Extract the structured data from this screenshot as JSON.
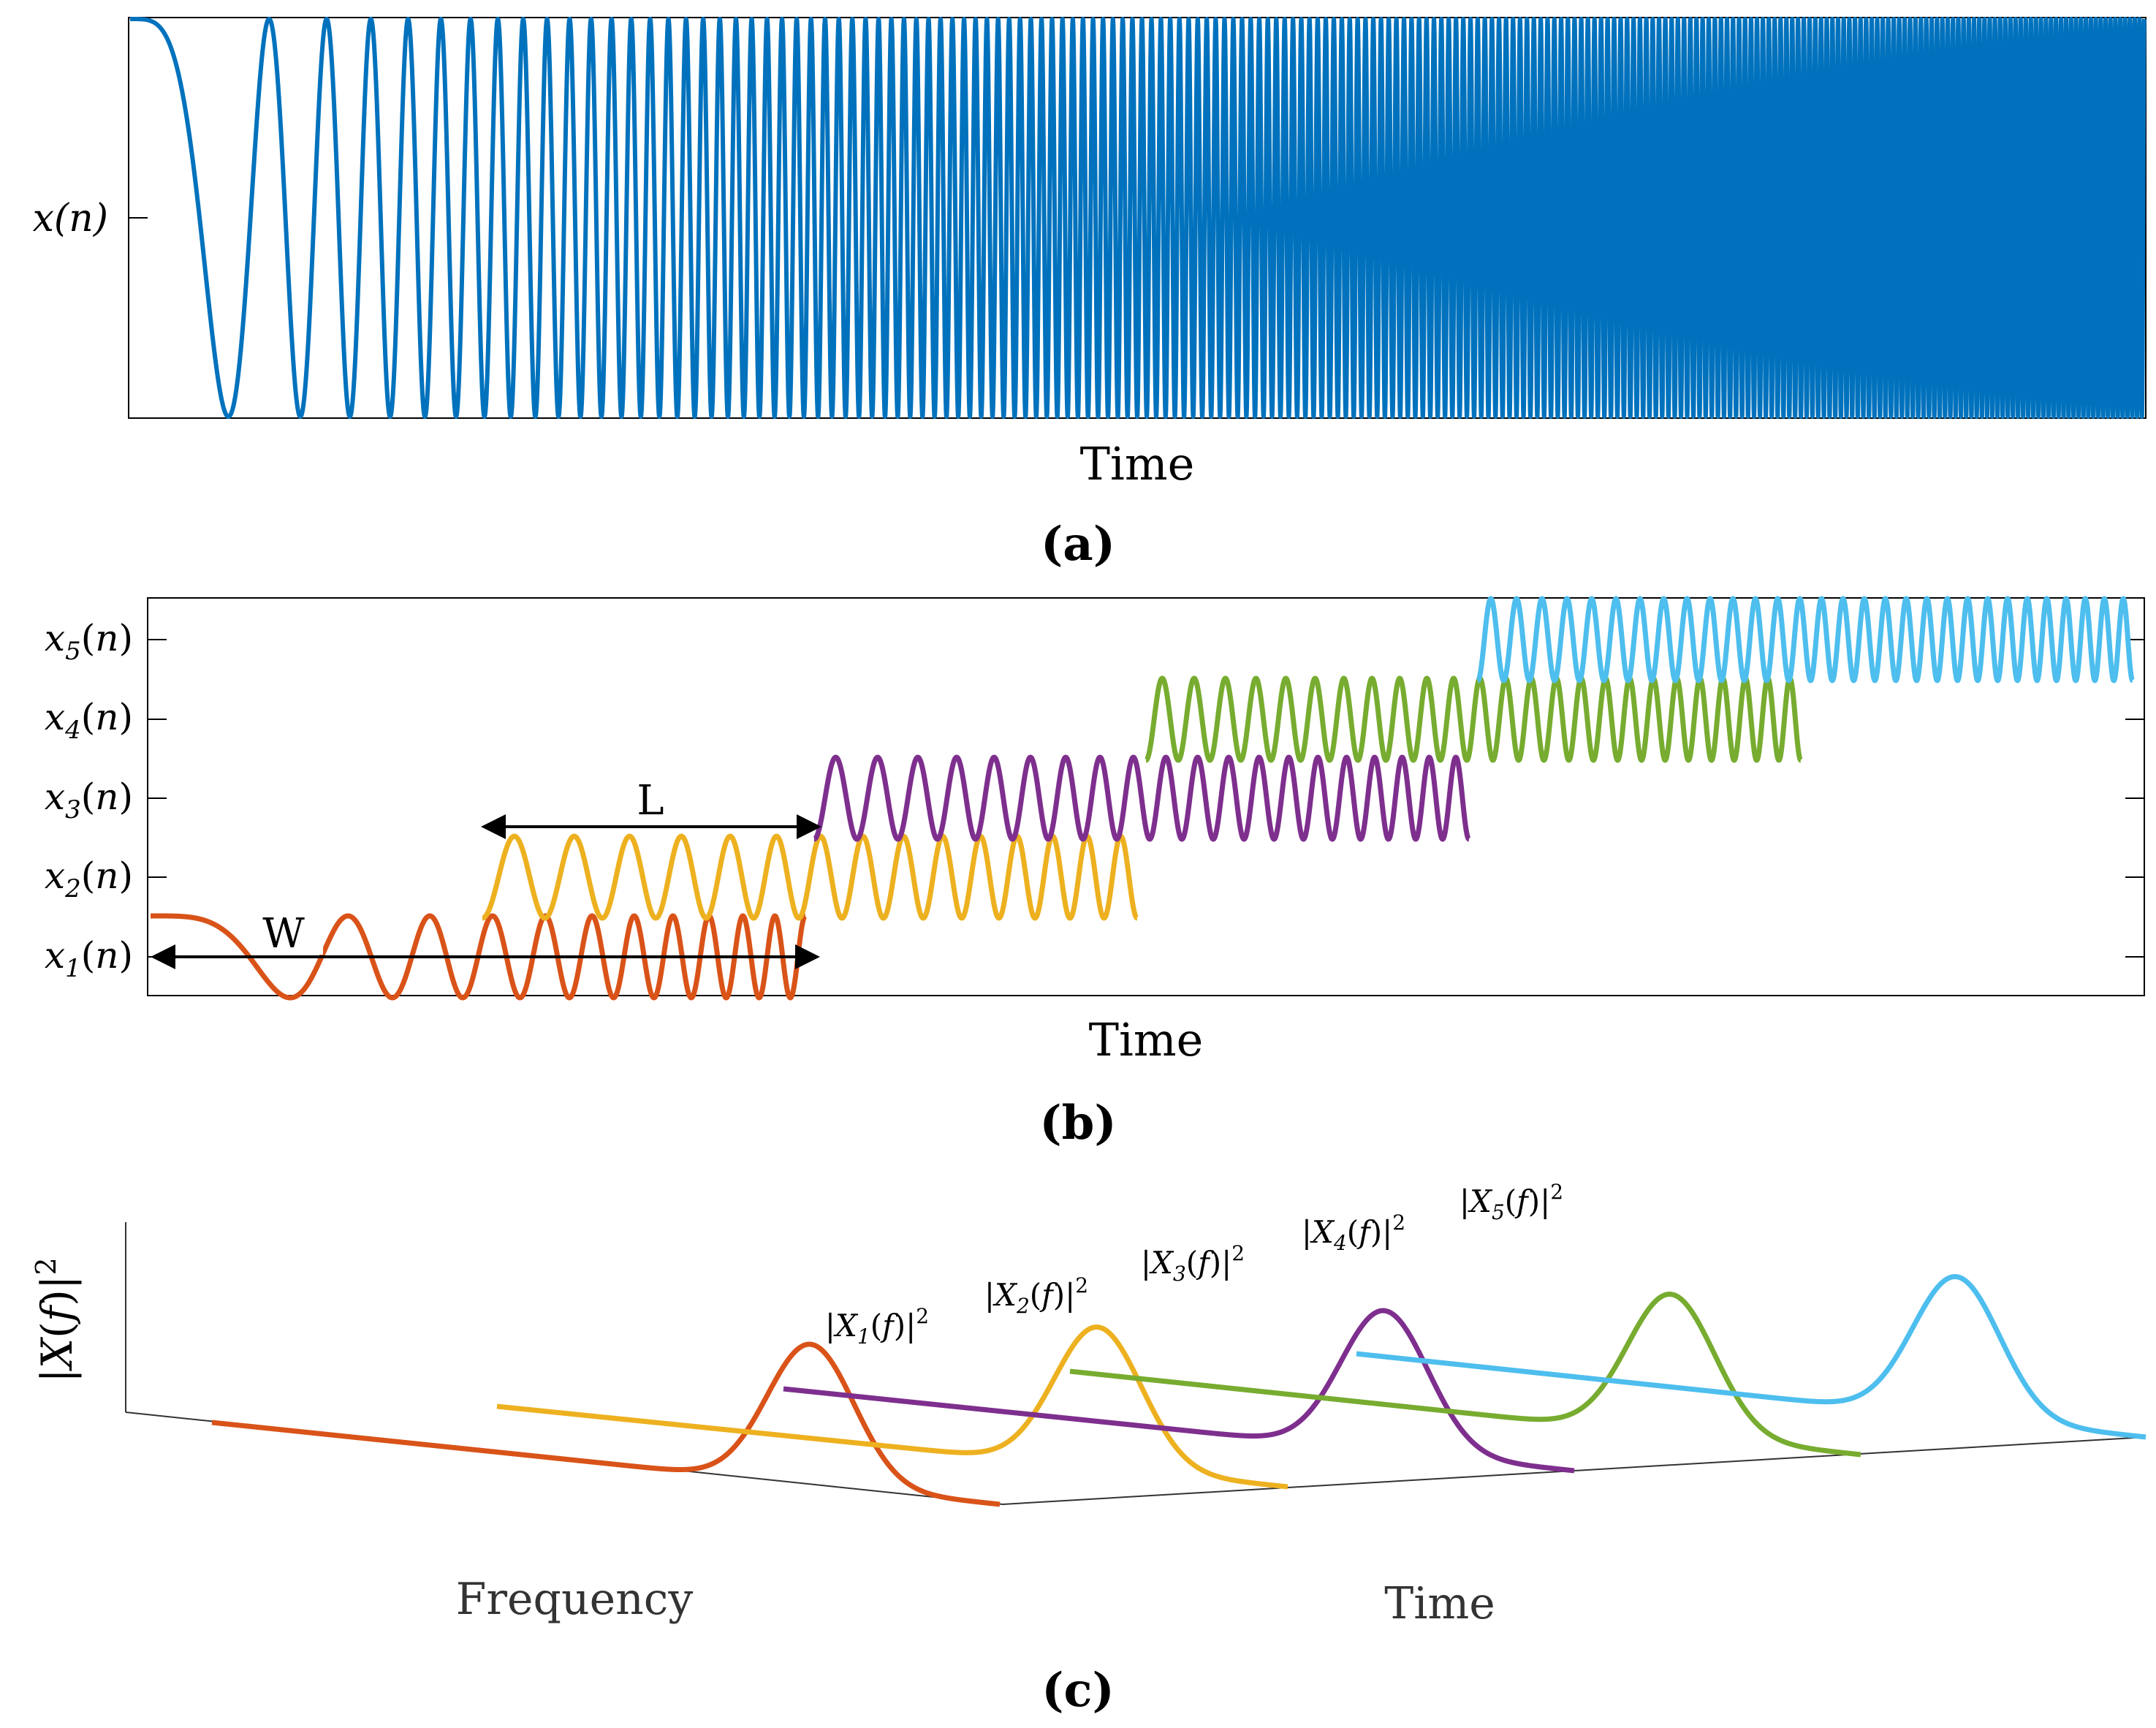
{
  "panel_a": {
    "caption": "(a)",
    "ylabel": "x(n)",
    "xlabel": "Time",
    "color": "#0072BD"
  },
  "panel_b": {
    "caption": "(b)",
    "xlabel": "Time",
    "segments": [
      {
        "label": "x1(n)",
        "name": "x",
        "sub": "1",
        "color": "#D95319"
      },
      {
        "label": "x2(n)",
        "name": "x",
        "sub": "2",
        "color": "#EDB120"
      },
      {
        "label": "x3(n)",
        "name": "x",
        "sub": "3",
        "color": "#7E2F8E"
      },
      {
        "label": "x4(n)",
        "name": "x",
        "sub": "4",
        "color": "#77AC30"
      },
      {
        "label": "x5(n)",
        "name": "x",
        "sub": "5",
        "color": "#4DBEEE"
      }
    ],
    "window_label": "W",
    "hop_label": "L"
  },
  "panel_c": {
    "caption": "(c)",
    "zlabel": "|X(f)|²",
    "xlabel": "Frequency",
    "ylabel": "Time",
    "spectra": [
      {
        "label": "|X1(f)|²",
        "sub": "1",
        "color": "#D95319"
      },
      {
        "label": "|X2(f)|²",
        "sub": "2",
        "color": "#EDB120"
      },
      {
        "label": "|X3(f)|²",
        "sub": "3",
        "color": "#7E2F8E"
      },
      {
        "label": "|X4(f)|²",
        "sub": "4",
        "color": "#77AC30"
      },
      {
        "label": "|X5(f)|²",
        "sub": "5",
        "color": "#4DBEEE"
      }
    ]
  }
}
